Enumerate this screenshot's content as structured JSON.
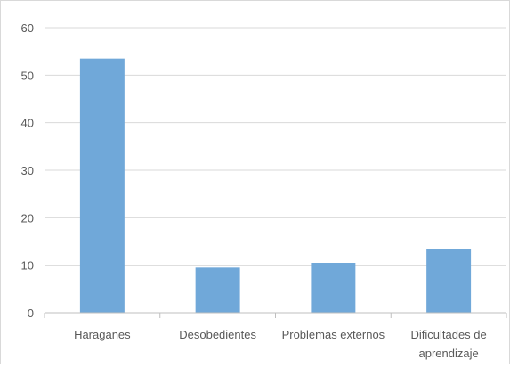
{
  "chart_data": {
    "type": "bar",
    "categories": [
      "Haraganes",
      "Desobedientes",
      "Problemas externos",
      "Dificultades de aprendizaje"
    ],
    "category_lines": [
      [
        "Haraganes"
      ],
      [
        "Desobedientes"
      ],
      [
        "Problemas externos"
      ],
      [
        "Dificultades de",
        "aprendizaje"
      ]
    ],
    "values": [
      53.5,
      9.5,
      10.5,
      13.5
    ],
    "ylim": [
      0,
      60
    ],
    "yticks": [
      0,
      10,
      20,
      30,
      40,
      50,
      60
    ],
    "ytick_labels": [
      "0",
      "10",
      "20",
      "30",
      "40",
      "50",
      "60"
    ],
    "grid": true,
    "colors": {
      "bar": "#70a8d9",
      "grid": "#d9d9d9",
      "axis": "#bfbfbf",
      "text": "#595959"
    }
  }
}
